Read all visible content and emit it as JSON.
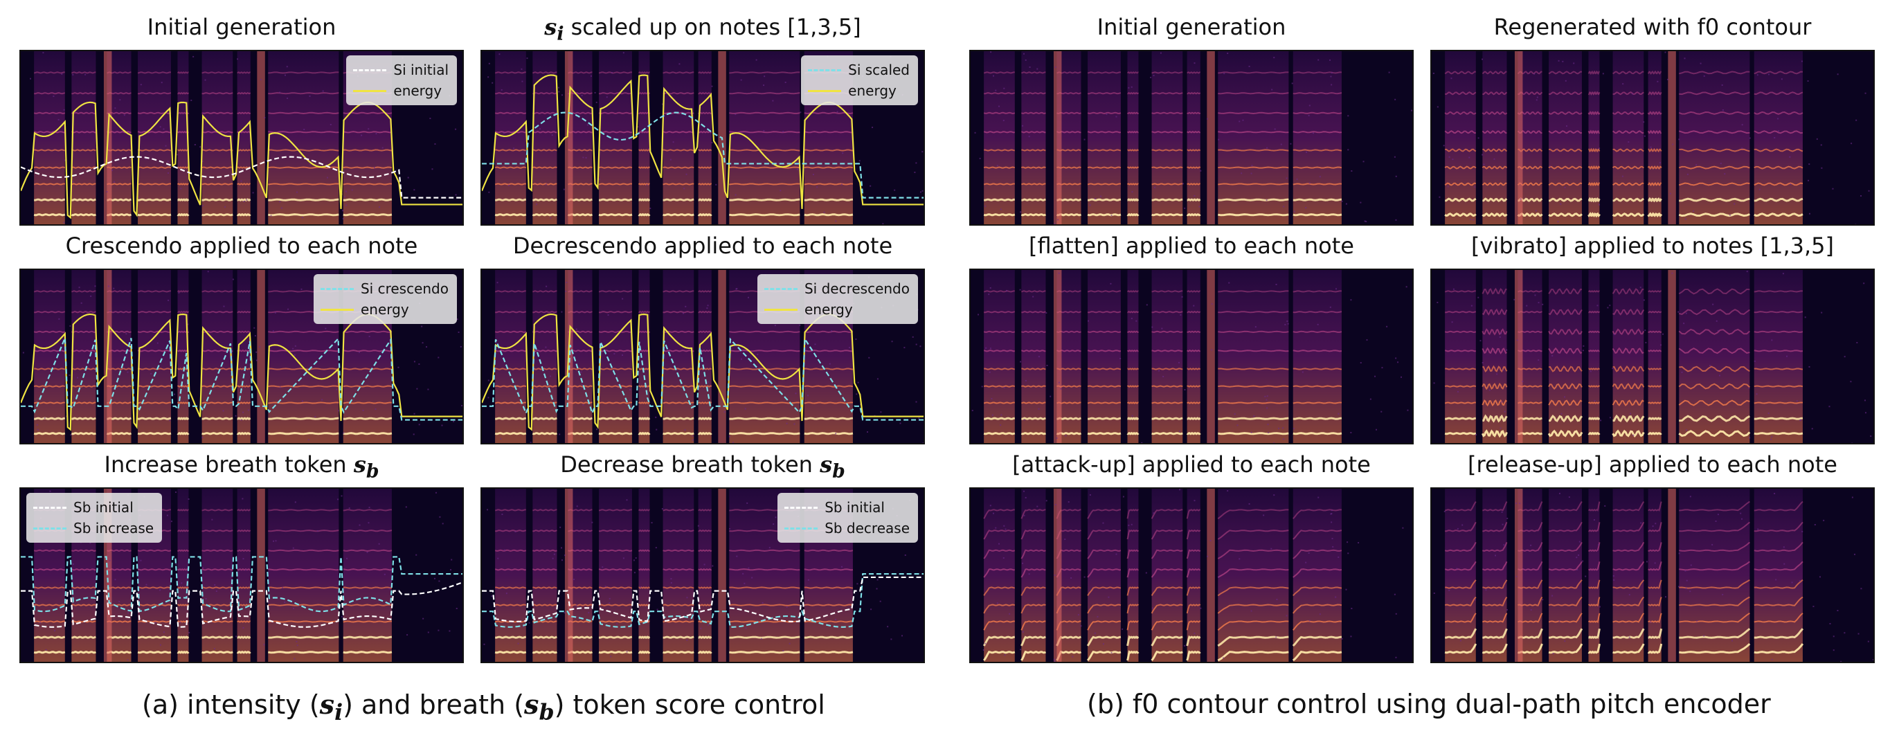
{
  "colors": {
    "background": "#ffffff",
    "spec_dark": "#0b0420",
    "spec_mid": "#7a1f7a",
    "spec_hot": "#f07a4a",
    "spec_bright": "#fde7a8",
    "energy": "#f0e442",
    "initial": "#ffffff",
    "modified": "#7fe0e8"
  },
  "panels": [
    {
      "title_pre": "Initial generation",
      "title_math": "",
      "title_post": "",
      "legend": [
        {
          "label": "Si initial",
          "color": "#ffffff",
          "style": "dashed"
        },
        {
          "label": "energy",
          "color": "#f0e442",
          "style": "solid"
        }
      ]
    },
    {
      "title_pre": "",
      "title_math": "s",
      "title_sub": "i",
      "title_post": " scaled up on notes [1,3,5]",
      "legend": [
        {
          "label": "Si scaled",
          "color": "#7fe0e8",
          "style": "dashed"
        },
        {
          "label": "energy",
          "color": "#f0e442",
          "style": "solid"
        }
      ]
    },
    {
      "title_pre": "Initial generation",
      "title_math": "",
      "title_post": "",
      "legend": []
    },
    {
      "title_pre": "Regenerated with f0 contour",
      "title_math": "",
      "title_post": "",
      "legend": []
    },
    {
      "title_pre": "Crescendo applied to each note",
      "title_math": "",
      "title_post": "",
      "legend": [
        {
          "label": "Si crescendo",
          "color": "#7fe0e8",
          "style": "dashed"
        },
        {
          "label": "energy",
          "color": "#f0e442",
          "style": "solid"
        }
      ]
    },
    {
      "title_pre": "Decrescendo applied to each note",
      "title_math": "",
      "title_post": "",
      "legend": [
        {
          "label": "Si decrescendo",
          "color": "#7fe0e8",
          "style": "dashed"
        },
        {
          "label": "energy",
          "color": "#f0e442",
          "style": "solid"
        }
      ]
    },
    {
      "title_pre": "[flatten] applied to each note",
      "title_math": "",
      "title_post": "",
      "legend": []
    },
    {
      "title_pre": "[vibrato] applied to notes [1,3,5]",
      "title_math": "",
      "title_post": "",
      "legend": []
    },
    {
      "title_pre": "Increase breath token ",
      "title_math": "s",
      "title_sub": "b",
      "title_post": "",
      "legend": [
        {
          "label": "Sb initial",
          "color": "#ffffff",
          "style": "dashed"
        },
        {
          "label": "Sb increase",
          "color": "#7fe0e8",
          "style": "dashed"
        }
      ]
    },
    {
      "title_pre": "Decrease breath token ",
      "title_math": "s",
      "title_sub": "b",
      "title_post": "",
      "legend": [
        {
          "label": "Sb initial",
          "color": "#ffffff",
          "style": "dashed"
        },
        {
          "label": "Sb decrease",
          "color": "#7fe0e8",
          "style": "dashed"
        }
      ]
    },
    {
      "title_pre": "[attack-up] applied to each note",
      "title_math": "",
      "title_post": "",
      "legend": []
    },
    {
      "title_pre": "[release-up] applied to each note",
      "title_math": "",
      "title_post": "",
      "legend": []
    }
  ],
  "captions": {
    "a_pre": "(a) intensity (",
    "a_m1": "s",
    "a_s1": "i",
    "a_mid": ") and breath (",
    "a_m2": "s",
    "a_s2": "b",
    "a_post": ") token  score control",
    "b": "(b) f0 contour control using dual-path pitch encoder"
  }
}
